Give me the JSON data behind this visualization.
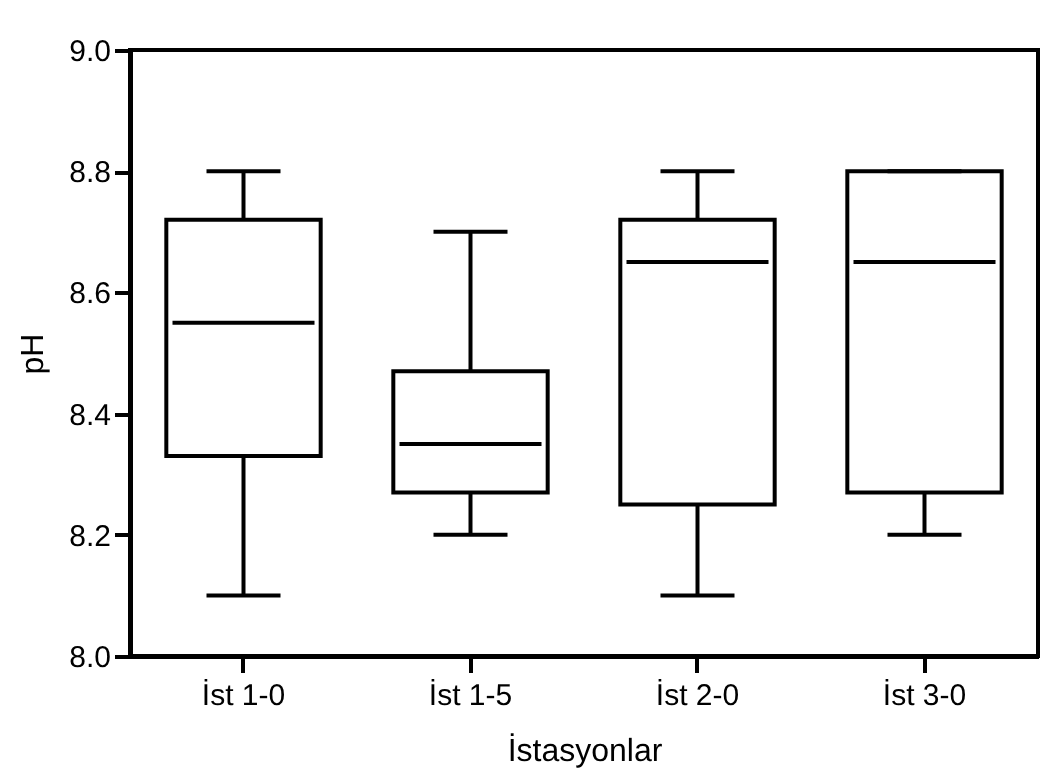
{
  "chart_data": {
    "type": "box",
    "xlabel": "İstasyonlar",
    "ylabel": "pH",
    "categories": [
      "İst 1-0",
      "İst 1-5",
      "İst 2-0",
      "İst 3-0"
    ],
    "ylim": [
      8.0,
      9.0
    ],
    "yticks": [
      {
        "value": 8.0,
        "label": "8.0"
      },
      8.2,
      8.4,
      8.6,
      8.8,
      {
        "value": 9.0,
        "label": "9.0"
      }
    ],
    "series": [
      {
        "color": "#000000",
        "boxes": [
          {
            "low": 8.1,
            "q1": 8.33,
            "median": 8.55,
            "q3": 8.72,
            "high": 8.8
          },
          {
            "low": 8.2,
            "q1": 8.27,
            "median": 8.35,
            "q3": 8.47,
            "high": 8.7
          },
          {
            "low": 8.1,
            "q1": 8.25,
            "median": 8.65,
            "q3": 8.72,
            "high": 8.8
          },
          {
            "low": 8.2,
            "q1": 8.27,
            "median": 8.65,
            "q3": 8.8,
            "high": 8.8
          }
        ]
      }
    ]
  }
}
